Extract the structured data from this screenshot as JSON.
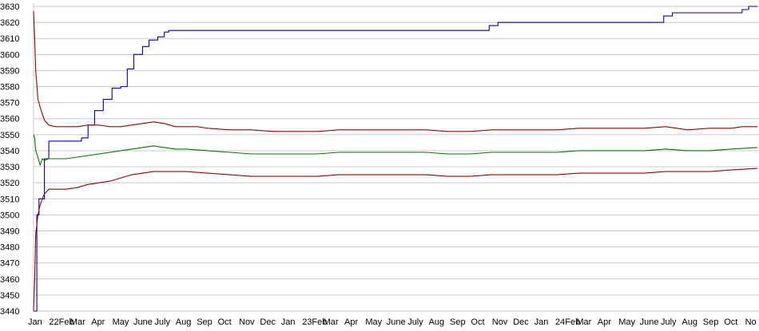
{
  "chart_data": {
    "type": "line",
    "title": "",
    "xlabel": "",
    "ylabel": "",
    "grid": true,
    "ylim": [
      3440,
      3630
    ],
    "y_ticks": [
      3440,
      3450,
      3460,
      3470,
      3480,
      3490,
      3500,
      3510,
      3520,
      3530,
      3540,
      3550,
      3560,
      3570,
      3580,
      3590,
      3600,
      3610,
      3620,
      3630
    ],
    "x_tick_labels": [
      "Jan",
      "22Feb",
      "Mar",
      "Apr",
      "May",
      "June",
      "July",
      "Aug",
      "Sep",
      "Oct",
      "Nov",
      "Dec",
      "Jan",
      "23Feb",
      "Mar",
      "Apr",
      "May",
      "June",
      "July",
      "Aug",
      "Sep",
      "Oct",
      "Nov",
      "Dec",
      "Jan",
      "24Feb",
      "Mar",
      "Apr",
      "May",
      "June",
      "July",
      "Aug",
      "Sep",
      "Oct",
      "No"
    ],
    "x_range": [
      0,
      33.2
    ],
    "colors": {
      "blue": "#0000aa",
      "red": "#990000",
      "green": "#007700",
      "grid": "#c8c8c8"
    },
    "series": [
      {
        "color": "blue",
        "style": "step",
        "points": [
          [
            0,
            3440
          ],
          [
            0.15,
            3500
          ],
          [
            0.25,
            3510
          ],
          [
            0.5,
            3535
          ],
          [
            0.7,
            3546
          ],
          [
            1.0,
            3546
          ],
          [
            1.5,
            3546
          ],
          [
            2.0,
            3546
          ],
          [
            2.2,
            3548
          ],
          [
            2.5,
            3556
          ],
          [
            2.8,
            3565
          ],
          [
            3.2,
            3572
          ],
          [
            3.6,
            3579
          ],
          [
            4.0,
            3580
          ],
          [
            4.3,
            3591
          ],
          [
            4.6,
            3600
          ],
          [
            5.0,
            3605
          ],
          [
            5.3,
            3609
          ],
          [
            5.7,
            3611
          ],
          [
            6.0,
            3614
          ],
          [
            6.2,
            3615
          ],
          [
            8.0,
            3615
          ],
          [
            10.0,
            3615
          ],
          [
            12.0,
            3615
          ],
          [
            14.0,
            3615
          ],
          [
            16.0,
            3615
          ],
          [
            20.5,
            3615
          ],
          [
            20.9,
            3618
          ],
          [
            21.3,
            3620
          ],
          [
            23.0,
            3620
          ],
          [
            25.0,
            3620
          ],
          [
            27.0,
            3620
          ],
          [
            28.5,
            3620
          ],
          [
            28.9,
            3624
          ],
          [
            29.3,
            3626
          ],
          [
            31.0,
            3626
          ],
          [
            32.2,
            3626
          ],
          [
            32.5,
            3628
          ],
          [
            32.8,
            3630
          ],
          [
            33.2,
            3630
          ]
        ]
      },
      {
        "color": "red",
        "style": "line",
        "points": [
          [
            0,
            3627
          ],
          [
            0.05,
            3610
          ],
          [
            0.1,
            3590
          ],
          [
            0.2,
            3572
          ],
          [
            0.35,
            3565
          ],
          [
            0.5,
            3559
          ],
          [
            0.7,
            3556
          ],
          [
            1.0,
            3555
          ],
          [
            1.5,
            3555
          ],
          [
            2.0,
            3555
          ],
          [
            2.5,
            3556
          ],
          [
            3.0,
            3556
          ],
          [
            3.5,
            3555
          ],
          [
            4.0,
            3555
          ],
          [
            4.5,
            3556
          ],
          [
            5.0,
            3557
          ],
          [
            5.5,
            3558
          ],
          [
            6.0,
            3557
          ],
          [
            6.5,
            3555
          ],
          [
            7.0,
            3555
          ],
          [
            7.5,
            3555
          ],
          [
            8.0,
            3554
          ],
          [
            9.0,
            3553
          ],
          [
            10.0,
            3553
          ],
          [
            11.0,
            3552
          ],
          [
            12.0,
            3552
          ],
          [
            13.0,
            3552
          ],
          [
            14.0,
            3553
          ],
          [
            15.0,
            3553
          ],
          [
            16.0,
            3553
          ],
          [
            17.0,
            3553
          ],
          [
            18.0,
            3553
          ],
          [
            19.0,
            3552
          ],
          [
            20.0,
            3552
          ],
          [
            21.0,
            3553
          ],
          [
            22.0,
            3553
          ],
          [
            23.0,
            3553
          ],
          [
            24.0,
            3553
          ],
          [
            25.0,
            3554
          ],
          [
            26.0,
            3554
          ],
          [
            27.0,
            3554
          ],
          [
            28.0,
            3554
          ],
          [
            29.0,
            3555
          ],
          [
            30.0,
            3553
          ],
          [
            31.0,
            3554
          ],
          [
            32.0,
            3554
          ],
          [
            32.5,
            3555
          ],
          [
            33.2,
            3555
          ]
        ]
      },
      {
        "color": "green",
        "style": "line",
        "points": [
          [
            0,
            3550
          ],
          [
            0.05,
            3548
          ],
          [
            0.1,
            3540
          ],
          [
            0.2,
            3536
          ],
          [
            0.3,
            3531
          ],
          [
            0.4,
            3535
          ],
          [
            0.5,
            3534
          ],
          [
            0.7,
            3535
          ],
          [
            1.0,
            3535
          ],
          [
            1.5,
            3535
          ],
          [
            2.0,
            3536
          ],
          [
            2.5,
            3537
          ],
          [
            3.0,
            3538
          ],
          [
            3.5,
            3539
          ],
          [
            4.0,
            3540
          ],
          [
            4.5,
            3541
          ],
          [
            5.0,
            3542
          ],
          [
            5.5,
            3543
          ],
          [
            6.0,
            3542
          ],
          [
            6.5,
            3541
          ],
          [
            7.0,
            3541
          ],
          [
            8.0,
            3540
          ],
          [
            9.0,
            3539
          ],
          [
            10.0,
            3538
          ],
          [
            11.0,
            3538
          ],
          [
            12.0,
            3538
          ],
          [
            13.0,
            3538
          ],
          [
            14.0,
            3539
          ],
          [
            15.0,
            3539
          ],
          [
            16.0,
            3539
          ],
          [
            17.0,
            3539
          ],
          [
            18.0,
            3539
          ],
          [
            19.0,
            3538
          ],
          [
            20.0,
            3538
          ],
          [
            21.0,
            3539
          ],
          [
            22.0,
            3539
          ],
          [
            23.0,
            3539
          ],
          [
            24.0,
            3539
          ],
          [
            25.0,
            3540
          ],
          [
            26.0,
            3540
          ],
          [
            27.0,
            3540
          ],
          [
            28.0,
            3540
          ],
          [
            29.0,
            3541
          ],
          [
            30.0,
            3540
          ],
          [
            31.0,
            3540
          ],
          [
            32.0,
            3541
          ],
          [
            33.2,
            3542
          ]
        ]
      },
      {
        "color": "red",
        "style": "line",
        "points": [
          [
            0,
            3440
          ],
          [
            0.05,
            3460
          ],
          [
            0.1,
            3488
          ],
          [
            0.2,
            3500
          ],
          [
            0.3,
            3506
          ],
          [
            0.4,
            3510
          ],
          [
            0.5,
            3513
          ],
          [
            0.7,
            3516
          ],
          [
            1.0,
            3516
          ],
          [
            1.5,
            3516
          ],
          [
            2.0,
            3517
          ],
          [
            2.5,
            3519
          ],
          [
            3.0,
            3520
          ],
          [
            3.5,
            3521
          ],
          [
            4.0,
            3523
          ],
          [
            4.5,
            3525
          ],
          [
            5.0,
            3526
          ],
          [
            5.5,
            3527
          ],
          [
            6.0,
            3527
          ],
          [
            6.5,
            3527
          ],
          [
            7.0,
            3527
          ],
          [
            8.0,
            3526
          ],
          [
            9.0,
            3525
          ],
          [
            10.0,
            3524
          ],
          [
            11.0,
            3524
          ],
          [
            12.0,
            3524
          ],
          [
            13.0,
            3524
          ],
          [
            14.0,
            3525
          ],
          [
            15.0,
            3525
          ],
          [
            16.0,
            3525
          ],
          [
            17.0,
            3525
          ],
          [
            18.0,
            3525
          ],
          [
            19.0,
            3524
          ],
          [
            20.0,
            3524
          ],
          [
            21.0,
            3525
          ],
          [
            22.0,
            3525
          ],
          [
            23.0,
            3525
          ],
          [
            24.0,
            3525
          ],
          [
            25.0,
            3526
          ],
          [
            26.0,
            3526
          ],
          [
            27.0,
            3526
          ],
          [
            28.0,
            3526
          ],
          [
            29.0,
            3527
          ],
          [
            30.0,
            3527
          ],
          [
            31.0,
            3527
          ],
          [
            32.0,
            3528
          ],
          [
            33.2,
            3529
          ]
        ]
      }
    ]
  }
}
